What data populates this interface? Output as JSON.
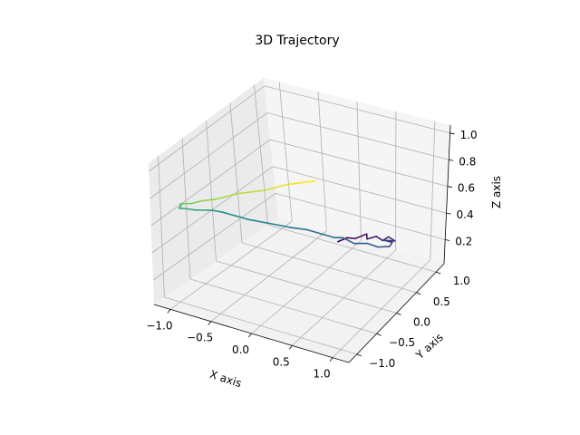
{
  "chart_data": {
    "type": "line",
    "projection": "3d",
    "title": "3D Trajectory",
    "xlabel": "X axis",
    "ylabel": "Y axis",
    "zlabel": "Z axis",
    "xlim": [
      -1.2,
      1.2
    ],
    "ylim": [
      -1.2,
      1.2
    ],
    "zlim": [
      0.02,
      1.06
    ],
    "x_ticks": [
      -1.0,
      -0.5,
      0.0,
      0.5,
      1.0
    ],
    "x_tick_labels": [
      "−1.0",
      "−0.5",
      "0.0",
      "0.5",
      "1.0"
    ],
    "y_ticks": [
      -1.0,
      -0.5,
      0.0,
      0.5,
      1.0
    ],
    "y_tick_labels": [
      "−1.0",
      "−0.5",
      "0.0",
      "0.5",
      "1.0"
    ],
    "z_ticks": [
      0.2,
      0.4,
      0.6,
      0.8,
      1.0
    ],
    "z_tick_labels": [
      "0.2",
      "0.4",
      "0.6",
      "0.8",
      "1.0"
    ],
    "grid": true,
    "colormap": "viridis",
    "colormap_stops": [
      "#440154",
      "#3b528b",
      "#21918c",
      "#5ec962",
      "#fde725"
    ],
    "points": [
      [
        -0.2,
        1.0,
        0.04
      ],
      [
        -0.1,
        1.05,
        0.07
      ],
      [
        0.05,
        1.0,
        0.1
      ],
      [
        0.15,
        1.1,
        0.12
      ],
      [
        0.25,
        0.95,
        0.14
      ],
      [
        0.35,
        1.0,
        0.16
      ],
      [
        0.5,
        0.9,
        0.18
      ],
      [
        0.55,
        0.95,
        0.2
      ],
      [
        0.7,
        0.85,
        0.22
      ],
      [
        0.6,
        0.75,
        0.24
      ],
      [
        0.75,
        0.7,
        0.26
      ],
      [
        0.8,
        0.55,
        0.28
      ],
      [
        0.72,
        0.42,
        0.3
      ],
      [
        0.6,
        0.38,
        0.32
      ],
      [
        0.5,
        0.25,
        0.34
      ],
      [
        0.35,
        0.25,
        0.36
      ],
      [
        0.3,
        0.15,
        0.38
      ],
      [
        0.15,
        0.1,
        0.4
      ],
      [
        0.0,
        0.05,
        0.42
      ],
      [
        -0.15,
        -0.05,
        0.44
      ],
      [
        -0.25,
        -0.12,
        0.46
      ],
      [
        -0.4,
        -0.2,
        0.48
      ],
      [
        -0.55,
        -0.28,
        0.5
      ],
      [
        -0.7,
        -0.33,
        0.52
      ],
      [
        -0.82,
        -0.38,
        0.54
      ],
      [
        -0.9,
        -0.45,
        0.56
      ],
      [
        -0.95,
        -0.55,
        0.58
      ],
      [
        -1.0,
        -0.65,
        0.6
      ],
      [
        -1.05,
        -0.72,
        0.62
      ],
      [
        -1.08,
        -0.8,
        0.64
      ],
      [
        -1.06,
        -0.85,
        0.66
      ],
      [
        -1.02,
        -0.92,
        0.68
      ],
      [
        -1.0,
        -0.9,
        0.7
      ],
      [
        -0.98,
        -0.95,
        0.72
      ],
      [
        -0.95,
        -1.0,
        0.74
      ],
      [
        -0.92,
        -1.05,
        0.76
      ],
      [
        -0.85,
        -1.08,
        0.78
      ],
      [
        -0.75,
        -1.1,
        0.8
      ],
      [
        -0.65,
        -1.05,
        0.82
      ],
      [
        -0.5,
        -1.0,
        0.84
      ],
      [
        -0.4,
        -0.95,
        0.86
      ],
      [
        -0.3,
        -0.9,
        0.88
      ],
      [
        -0.15,
        -0.85,
        0.9
      ],
      [
        0.0,
        -0.8,
        0.92
      ],
      [
        0.1,
        -0.75,
        0.94
      ],
      [
        0.2,
        -0.7,
        0.96
      ],
      [
        0.35,
        -0.65,
        0.98
      ],
      [
        0.5,
        -0.6,
        1.0
      ]
    ]
  }
}
